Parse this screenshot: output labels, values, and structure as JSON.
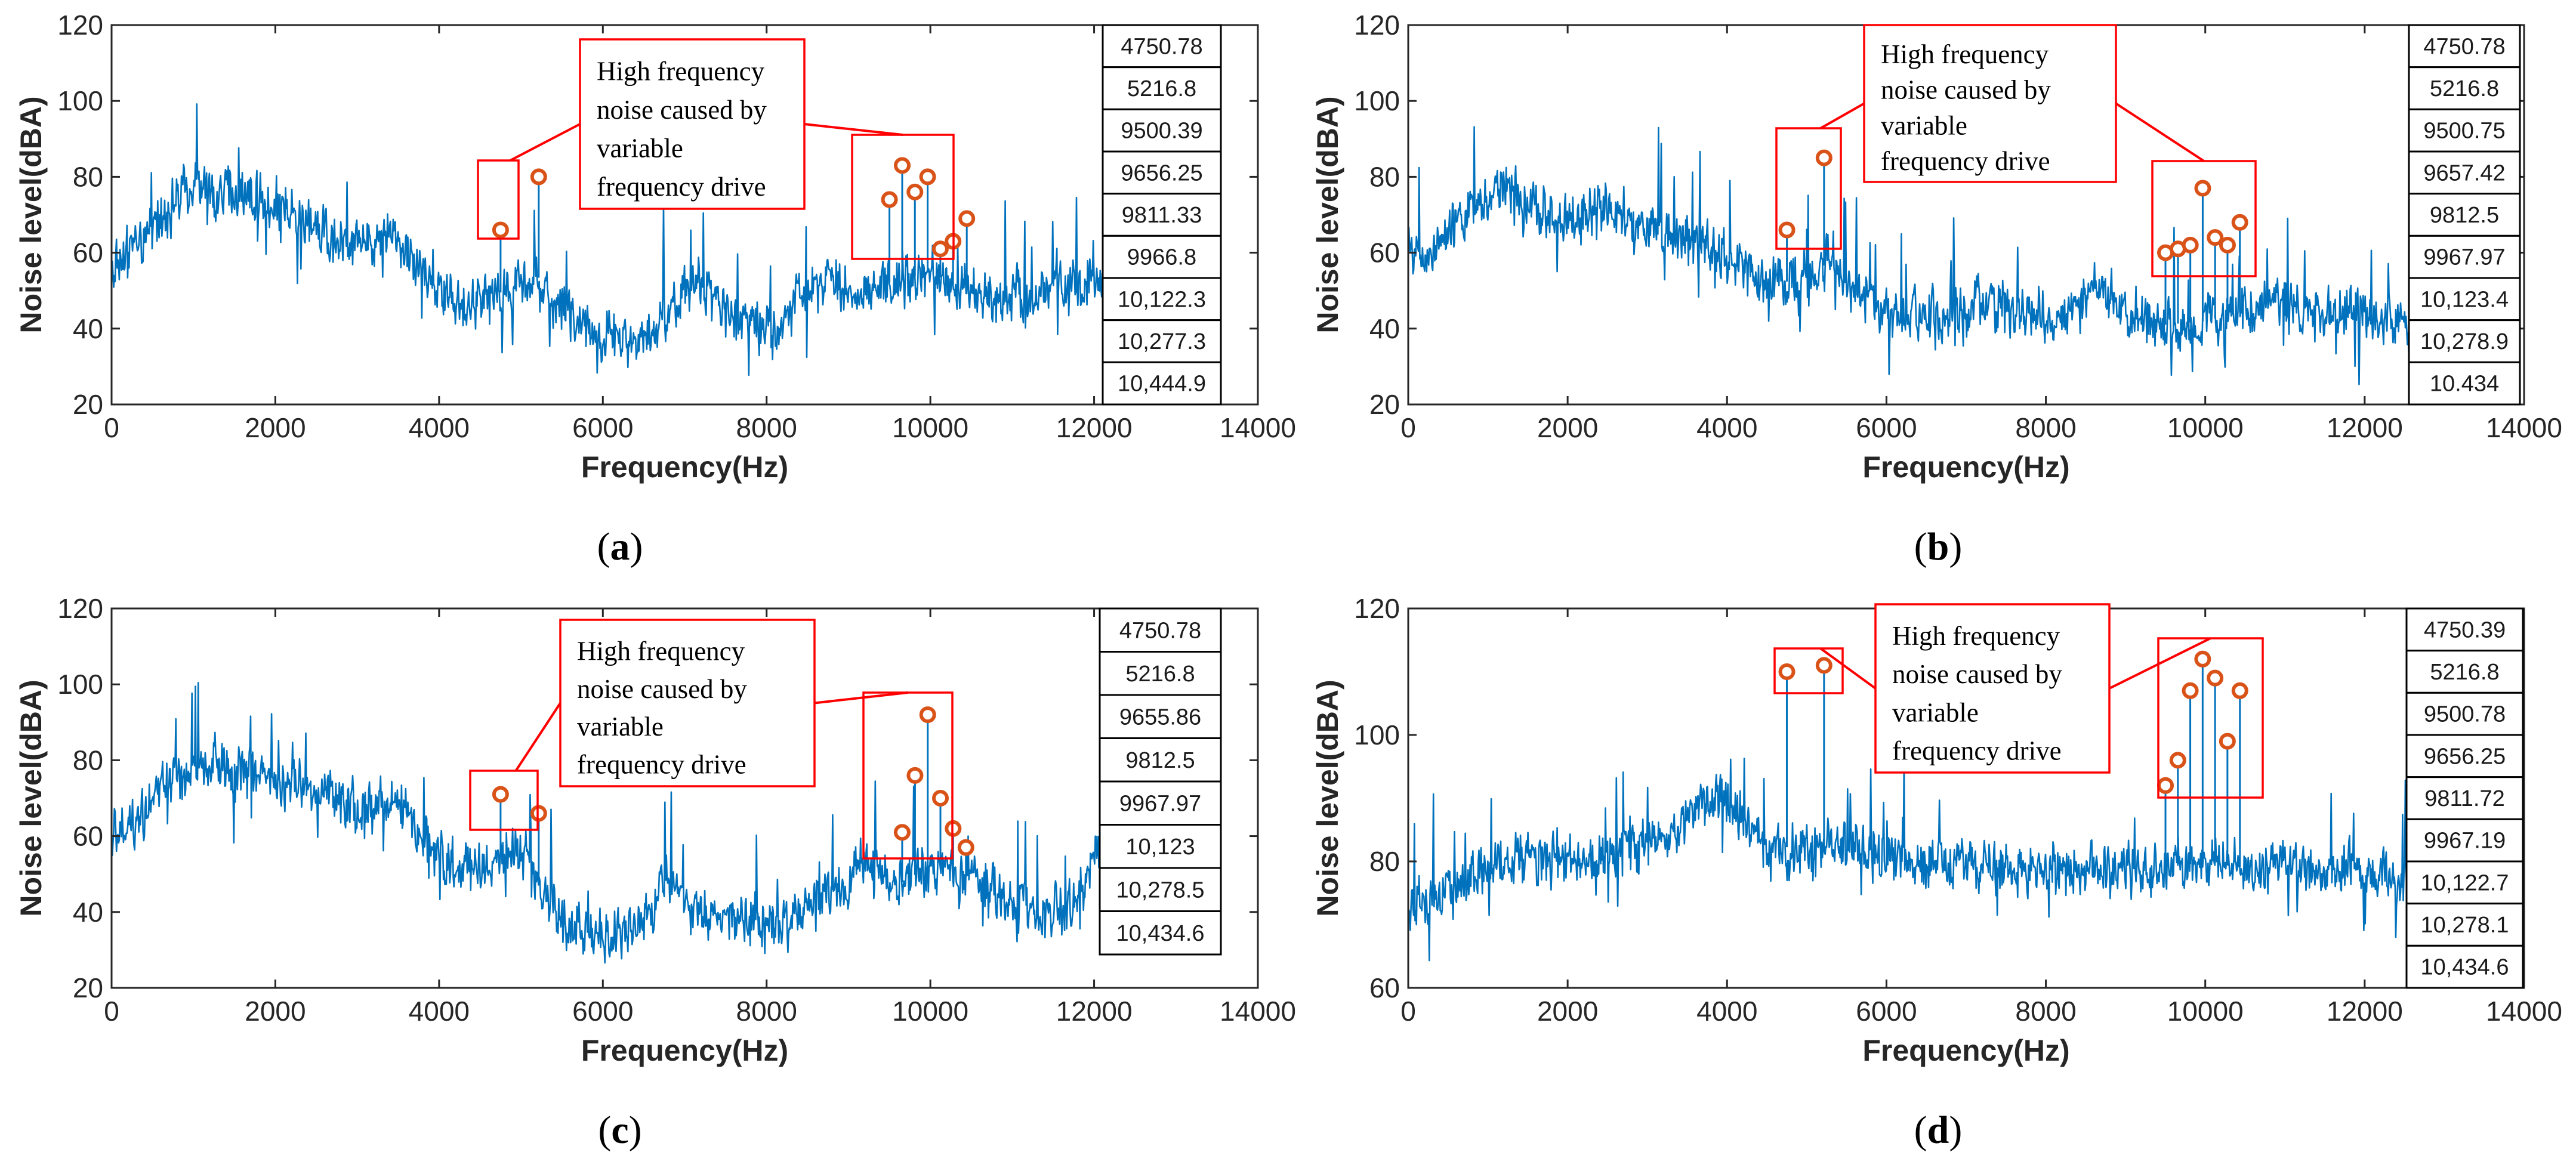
{
  "colors": {
    "line": "#0072BD",
    "marker": "#D95319",
    "box": "#FF0000",
    "axis": "#262626"
  },
  "chart_data": [
    {
      "type": "line",
      "caption_letter": "a",
      "xlabel": "Frequency(Hz)",
      "ylabel": "Noise level(dBA)",
      "xlim": [
        0,
        14000
      ],
      "ylim": [
        20,
        120
      ],
      "xticks": [
        0,
        2000,
        4000,
        6000,
        8000,
        10000,
        12000,
        14000
      ],
      "yticks": [
        20,
        40,
        60,
        80,
        100,
        120
      ],
      "grid": false,
      "data_max_x": 12800,
      "annotation": [
        "High frequency",
        "noise caused by",
        "variable",
        "frequency drive"
      ],
      "highlighted_peaks": [
        {
          "x": 4750.78,
          "y": 66
        },
        {
          "x": 5216.8,
          "y": 80
        },
        {
          "x": 9500.39,
          "y": 74
        },
        {
          "x": 9656.25,
          "y": 83
        },
        {
          "x": 9811.33,
          "y": 76
        },
        {
          "x": 9966.8,
          "y": 80
        },
        {
          "x": 10122.3,
          "y": 61
        },
        {
          "x": 10277.3,
          "y": 63
        },
        {
          "x": 10444.9,
          "y": 69
        }
      ],
      "peak_labels": [
        "4750.78",
        "5216.8",
        "9500.39",
        "9656.25",
        "9811.33",
        "9966.8",
        "10,122.3",
        "10,277.3",
        "10,444.9"
      ],
      "spectrum_envelope": [
        [
          0,
          55
        ],
        [
          200,
          62
        ],
        [
          400,
          62
        ],
        [
          600,
          70
        ],
        [
          800,
          74
        ],
        [
          1000,
          78
        ],
        [
          1200,
          76
        ],
        [
          1500,
          76
        ],
        [
          1800,
          74
        ],
        [
          2100,
          72
        ],
        [
          2400,
          68
        ],
        [
          2700,
          65
        ],
        [
          3000,
          63
        ],
        [
          3400,
          66
        ],
        [
          3700,
          58
        ],
        [
          4000,
          50
        ],
        [
          4300,
          46
        ],
        [
          4600,
          48
        ],
        [
          5000,
          52
        ],
        [
          5200,
          54
        ],
        [
          5400,
          47
        ],
        [
          5800,
          40
        ],
        [
          6200,
          37
        ],
        [
          6500,
          36
        ],
        [
          6800,
          44
        ],
        [
          7100,
          52
        ],
        [
          7300,
          49
        ],
        [
          7600,
          42
        ],
        [
          8000,
          40
        ],
        [
          8400,
          47
        ],
        [
          8700,
          55
        ],
        [
          9000,
          49
        ],
        [
          9500,
          52
        ],
        [
          10000,
          55
        ],
        [
          10500,
          49
        ],
        [
          11000,
          49
        ],
        [
          11500,
          50
        ],
        [
          12000,
          52
        ],
        [
          12500,
          53
        ],
        [
          12800,
          55
        ]
      ]
    },
    {
      "type": "line",
      "caption_letter": "b",
      "xlabel": "Frequency(Hz)",
      "ylabel": "Noise level(dBA)",
      "xlim": [
        0,
        14000
      ],
      "ylim": [
        20,
        120
      ],
      "xticks": [
        0,
        2000,
        4000,
        6000,
        8000,
        10000,
        12000,
        14000
      ],
      "yticks": [
        20,
        40,
        60,
        80,
        100,
        120
      ],
      "grid": false,
      "data_max_x": 12800,
      "annotation": [
        "High frequency",
        "noise caused by",
        "variable",
        "frequency drive"
      ],
      "highlighted_peaks": [
        {
          "x": 4750.78,
          "y": 66
        },
        {
          "x": 5216.8,
          "y": 85
        },
        {
          "x": 9500.75,
          "y": 60
        },
        {
          "x": 9657.42,
          "y": 61
        },
        {
          "x": 9812.5,
          "y": 62
        },
        {
          "x": 9967.97,
          "y": 77
        },
        {
          "x": 10123.4,
          "y": 64
        },
        {
          "x": 10278.9,
          "y": 62
        },
        {
          "x": 10434,
          "y": 68
        }
      ],
      "peak_labels": [
        "4750.78",
        "5216.8",
        "9500.75",
        "9657.42",
        "9812.5",
        "9967.97",
        "10,123.4",
        "10,278.9",
        "10.434"
      ],
      "spectrum_envelope": [
        [
          0,
          62
        ],
        [
          300,
          60
        ],
        [
          600,
          68
        ],
        [
          900,
          72
        ],
        [
          1200,
          78
        ],
        [
          1500,
          72
        ],
        [
          1800,
          70
        ],
        [
          2100,
          70
        ],
        [
          2500,
          73
        ],
        [
          2800,
          68
        ],
        [
          3200,
          64
        ],
        [
          3500,
          64
        ],
        [
          3800,
          60
        ],
        [
          4200,
          56
        ],
        [
          4600,
          52
        ],
        [
          5000,
          53
        ],
        [
          5300,
          58
        ],
        [
          5600,
          50
        ],
        [
          6000,
          44
        ],
        [
          6400,
          43
        ],
        [
          6800,
          44
        ],
        [
          7200,
          47
        ],
        [
          7600,
          44
        ],
        [
          8000,
          42
        ],
        [
          8400,
          46
        ],
        [
          8700,
          52
        ],
        [
          9000,
          44
        ],
        [
          9500,
          41
        ],
        [
          10000,
          42
        ],
        [
          10400,
          44
        ],
        [
          10800,
          47
        ],
        [
          11200,
          45
        ],
        [
          11600,
          45
        ],
        [
          12000,
          44
        ],
        [
          12400,
          42
        ],
        [
          12800,
          40
        ]
      ]
    },
    {
      "type": "line",
      "caption_letter": "c",
      "xlabel": "Frequency(Hz)",
      "ylabel": "Noise level(dBA)",
      "xlim": [
        0,
        14000
      ],
      "ylim": [
        20,
        120
      ],
      "xticks": [
        0,
        2000,
        4000,
        6000,
        8000,
        10000,
        12000,
        14000
      ],
      "yticks": [
        20,
        40,
        60,
        80,
        100,
        120
      ],
      "grid": false,
      "data_max_x": 12800,
      "annotation": [
        "High frequency",
        "noise caused by",
        "variable",
        "frequency drive"
      ],
      "highlighted_peaks": [
        {
          "x": 4750.78,
          "y": 71
        },
        {
          "x": 5216.8,
          "y": 66
        },
        {
          "x": 9655.86,
          "y": 61
        },
        {
          "x": 9812.5,
          "y": 76
        },
        {
          "x": 9967.97,
          "y": 92
        },
        {
          "x": 10123,
          "y": 70
        },
        {
          "x": 10278.5,
          "y": 62
        },
        {
          "x": 10434.6,
          "y": 57
        }
      ],
      "peak_labels": [
        "4750.78",
        "5216.8",
        "9655.86",
        "9812.5",
        "9967.97",
        "10,123",
        "10,278.5",
        "10,434.6"
      ],
      "spectrum_envelope": [
        [
          0,
          60
        ],
        [
          300,
          64
        ],
        [
          600,
          72
        ],
        [
          900,
          75
        ],
        [
          1200,
          80
        ],
        [
          1500,
          76
        ],
        [
          1800,
          78
        ],
        [
          2100,
          74
        ],
        [
          2500,
          72
        ],
        [
          2900,
          68
        ],
        [
          3200,
          68
        ],
        [
          3500,
          70
        ],
        [
          3800,
          60
        ],
        [
          4100,
          53
        ],
        [
          4400,
          50
        ],
        [
          4700,
          54
        ],
        [
          5000,
          57
        ],
        [
          5200,
          48
        ],
        [
          5500,
          38
        ],
        [
          5900,
          34
        ],
        [
          6300,
          34
        ],
        [
          6600,
          42
        ],
        [
          6800,
          50
        ],
        [
          7000,
          42
        ],
        [
          7400,
          38
        ],
        [
          7800,
          38
        ],
        [
          8200,
          36
        ],
        [
          8600,
          44
        ],
        [
          9000,
          48
        ],
        [
          9200,
          54
        ],
        [
          9500,
          46
        ],
        [
          10000,
          52
        ],
        [
          10500,
          49
        ],
        [
          11000,
          42
        ],
        [
          11400,
          40
        ],
        [
          11800,
          44
        ],
        [
          12000,
          54
        ],
        [
          12300,
          50
        ],
        [
          12600,
          46
        ],
        [
          12800,
          48
        ]
      ]
    },
    {
      "type": "line",
      "caption_letter": "d",
      "xlabel": "Frequency(Hz)",
      "ylabel": "Noise level(dBA)",
      "xlim": [
        0,
        14000
      ],
      "ylim": [
        60,
        120
      ],
      "xticks": [
        0,
        2000,
        4000,
        6000,
        8000,
        10000,
        12000,
        14000
      ],
      "yticks": [
        60,
        80,
        100,
        120
      ],
      "grid": false,
      "data_max_x": 12800,
      "annotation": [
        "High frequency",
        "noise caused by",
        "variable",
        "frequency drive"
      ],
      "highlighted_peaks": [
        {
          "x": 4750.39,
          "y": 110
        },
        {
          "x": 5216.8,
          "y": 111
        },
        {
          "x": 9500.78,
          "y": 92
        },
        {
          "x": 9656.25,
          "y": 96
        },
        {
          "x": 9811.72,
          "y": 107
        },
        {
          "x": 9967.19,
          "y": 112
        },
        {
          "x": 10122.7,
          "y": 109
        },
        {
          "x": 10278.1,
          "y": 99
        },
        {
          "x": 10434.6,
          "y": 107
        }
      ],
      "peak_labels": [
        "4750.39",
        "5216.8",
        "9500.78",
        "9656.25",
        "9811.72",
        "9967.19",
        "10,122.7",
        "10,278.1",
        "10,434.6"
      ],
      "spectrum_envelope": [
        [
          0,
          72
        ],
        [
          300,
          74
        ],
        [
          600,
          76
        ],
        [
          900,
          78
        ],
        [
          1200,
          80
        ],
        [
          1600,
          80
        ],
        [
          2000,
          80
        ],
        [
          2400,
          80
        ],
        [
          2800,
          82
        ],
        [
          3200,
          84
        ],
        [
          3600,
          88
        ],
        [
          3800,
          90
        ],
        [
          4100,
          87
        ],
        [
          4400,
          84
        ],
        [
          4800,
          82
        ],
        [
          5200,
          82
        ],
        [
          5600,
          82
        ],
        [
          6000,
          81
        ],
        [
          6500,
          80
        ],
        [
          7000,
          80
        ],
        [
          7500,
          79
        ],
        [
          8000,
          79
        ],
        [
          8500,
          79
        ],
        [
          9000,
          79
        ],
        [
          9500,
          79
        ],
        [
          10000,
          80
        ],
        [
          10500,
          79
        ],
        [
          11000,
          79
        ],
        [
          11500,
          79
        ],
        [
          12000,
          79
        ],
        [
          12400,
          77
        ],
        [
          12800,
          76
        ]
      ]
    }
  ]
}
